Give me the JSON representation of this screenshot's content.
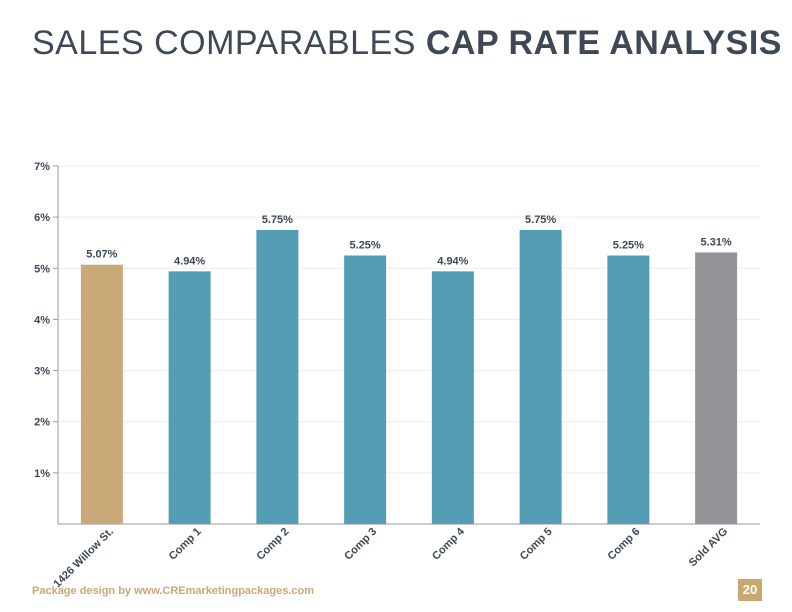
{
  "header": {
    "title_light": "SALES COMPARABLES",
    "title_bold": "CAP RATE ANALYSIS"
  },
  "chart_data": {
    "type": "bar",
    "categories": [
      "1426 Willow St.",
      "Comp 1",
      "Comp 2",
      "Comp 3",
      "Comp 4",
      "Comp 5",
      "Comp 6",
      "Sold AVG"
    ],
    "values": [
      5.07,
      4.94,
      5.75,
      5.25,
      4.94,
      5.75,
      5.25,
      5.31
    ],
    "data_labels": [
      "5.07%",
      "4.94%",
      "5.75%",
      "5.25%",
      "4.94%",
      "5.75%",
      "5.25%",
      "5.31%"
    ],
    "bar_colors": [
      "#c8a977",
      "#539db5",
      "#539db5",
      "#539db5",
      "#539db5",
      "#539db5",
      "#539db5",
      "#939598"
    ],
    "y_ticks": [
      1,
      2,
      3,
      4,
      5,
      6,
      7
    ],
    "y_tick_labels": [
      "1%",
      "2%",
      "3%",
      "4%",
      "5%",
      "6%",
      "7%"
    ],
    "ylim": [
      0,
      7
    ],
    "grid": true,
    "legend": "none"
  },
  "footer": {
    "credit": "Package design by www.CREmarketingpackages.com",
    "page_number": "20"
  }
}
